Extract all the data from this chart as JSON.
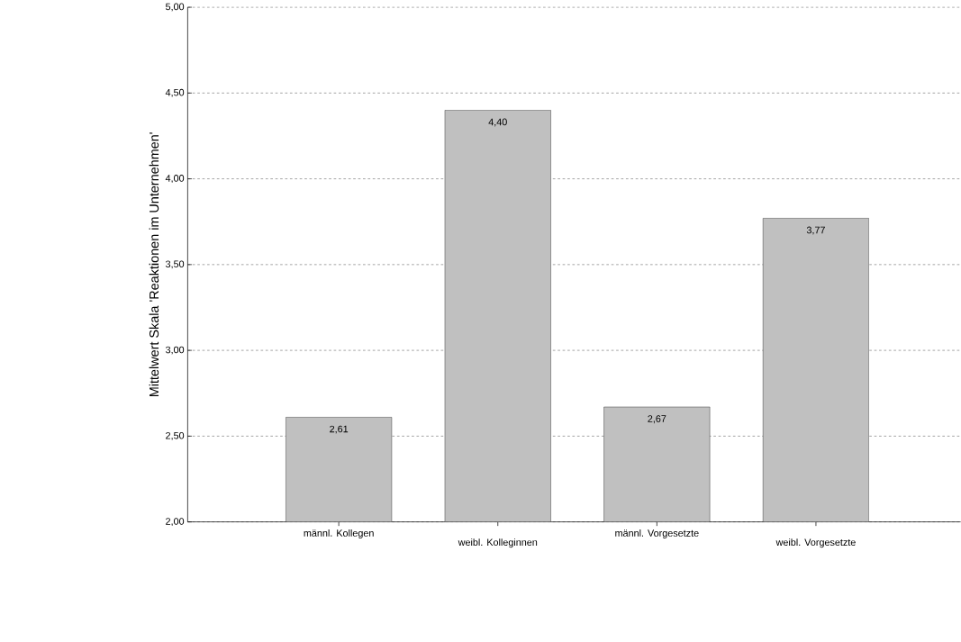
{
  "chart_data": {
    "type": "bar",
    "ylabel": "Mittelwert Skala 'Reaktionen im Unternehmen'",
    "categories": [
      "männl. Kollegen",
      "weibl. Kolleginnen",
      "männl. Vorgesetzte",
      "weibl. Vorgesetzte"
    ],
    "values": [
      2.61,
      4.4,
      2.67,
      3.77
    ],
    "color": "#c0c0c0",
    "value_labels": [
      "2,61",
      "4,40",
      "2,67",
      "3,77"
    ],
    "ylim": [
      2,
      5
    ],
    "yticks": [
      {
        "value": 2,
        "label": "2,00"
      },
      {
        "value": 2.5,
        "label": "2,50"
      },
      {
        "value": 3,
        "label": "3,00"
      },
      {
        "value": 3.5,
        "label": "3,50"
      },
      {
        "value": 4,
        "label": "4,00"
      },
      {
        "value": 4.5,
        "label": "4,50"
      },
      {
        "value": 5,
        "label": "5,00"
      }
    ],
    "grid": "y",
    "line_style": "dashed"
  }
}
